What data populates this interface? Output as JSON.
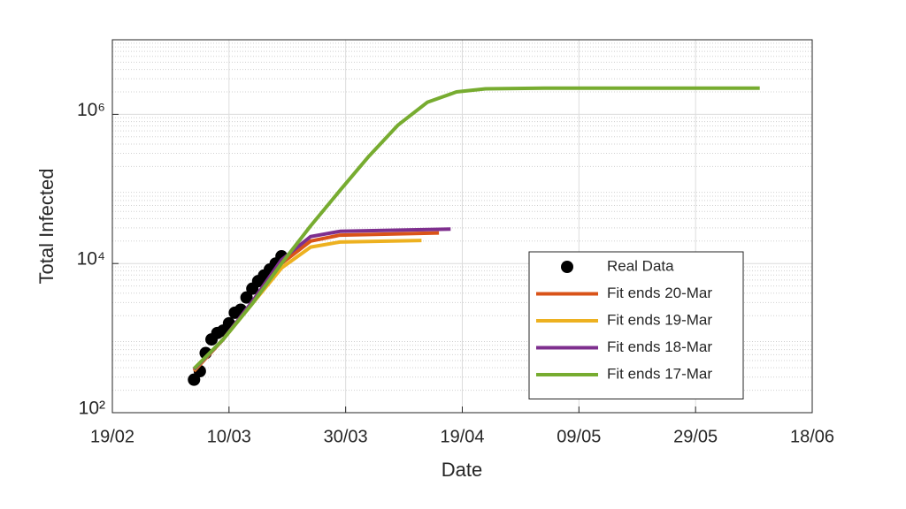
{
  "chart_data": {
    "type": "line",
    "xlabel": "Date",
    "ylabel": "Total Infected",
    "xlim": [
      "19/02",
      "18/06"
    ],
    "xticks": [
      "19/02",
      "10/03",
      "30/03",
      "19/04",
      "09/05",
      "29/05",
      "18/06"
    ],
    "ylim": [
      100,
      10000000
    ],
    "yticks": [
      {
        "value": 100,
        "label": "10²"
      },
      {
        "value": 10000,
        "label": "10⁴"
      },
      {
        "value": 1000000,
        "label": "10⁶"
      }
    ],
    "yscale": "log",
    "grid": true,
    "minor_grid": true,
    "legend": "lower right",
    "series": [
      {
        "name": "Real Data",
        "color": "#000000",
        "mode": "markers",
        "x": [
          "04/03",
          "05/03",
          "06/03",
          "07/03",
          "08/03",
          "09/03",
          "10/03",
          "11/03",
          "12/03",
          "13/03",
          "14/03",
          "15/03",
          "16/03",
          "17/03",
          "18/03",
          "19/03"
        ],
        "values": [
          277,
          360,
          630,
          960,
          1170,
          1260,
          1580,
          2190,
          2400,
          3500,
          4600,
          5800,
          6900,
          8300,
          10000,
          12500
        ]
      },
      {
        "name": "Fit ends 20-Mar",
        "color": "#d95319",
        "mode": "line",
        "x": [
          "04/03",
          "09/03",
          "14/03",
          "19/03",
          "24/03",
          "29/03",
          "15/04"
        ],
        "values": [
          360,
          960,
          3000,
          10000,
          20000,
          24000,
          25700
        ]
      },
      {
        "name": "Fit ends 19-Mar",
        "color": "#edb120",
        "mode": "line",
        "x": [
          "04/03",
          "09/03",
          "14/03",
          "19/03",
          "24/03",
          "29/03",
          "12/04"
        ],
        "values": [
          370,
          960,
          2900,
          8700,
          16600,
          19400,
          20400
        ]
      },
      {
        "name": "Fit ends 18-Mar",
        "color": "#7e2f8e",
        "mode": "line",
        "x": [
          "04/03",
          "09/03",
          "14/03",
          "19/03",
          "24/03",
          "29/03",
          "17/04"
        ],
        "values": [
          380,
          960,
          3100,
          11200,
          23000,
          27000,
          29000
        ]
      },
      {
        "name": "Fit ends 17-Mar",
        "color": "#77ac30",
        "mode": "line",
        "x": [
          "04/03",
          "09/03",
          "14/03",
          "19/03",
          "24/03",
          "29/03",
          "03/04",
          "08/04",
          "13/04",
          "18/04",
          "23/04",
          "03/05",
          "09/06"
        ],
        "values": [
          390,
          960,
          2900,
          10000,
          32000,
          95000,
          275000,
          720000,
          1450000,
          2000000,
          2200000,
          2250000,
          2250000
        ]
      }
    ]
  }
}
